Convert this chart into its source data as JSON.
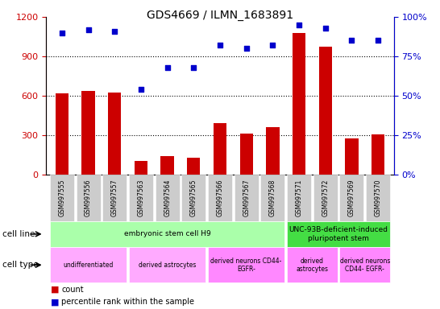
{
  "title": "GDS4669 / ILMN_1683891",
  "samples": [
    "GSM997555",
    "GSM997556",
    "GSM997557",
    "GSM997563",
    "GSM997564",
    "GSM997565",
    "GSM997566",
    "GSM997567",
    "GSM997568",
    "GSM997571",
    "GSM997572",
    "GSM997569",
    "GSM997570"
  ],
  "counts": [
    620,
    635,
    625,
    105,
    140,
    130,
    390,
    310,
    360,
    1080,
    975,
    275,
    305
  ],
  "percentiles": [
    90,
    92,
    91,
    54,
    68,
    68,
    82,
    80,
    82,
    95,
    93,
    85,
    85
  ],
  "ylim_left": [
    0,
    1200
  ],
  "ylim_right": [
    0,
    100
  ],
  "yticks_left": [
    0,
    300,
    600,
    900,
    1200
  ],
  "yticks_right": [
    0,
    25,
    50,
    75,
    100
  ],
  "bar_color": "#cc0000",
  "scatter_color": "#0000cc",
  "cell_line_spans": [
    {
      "label": "embryonic stem cell H9",
      "start": 0,
      "end": 9,
      "color": "#aaffaa"
    },
    {
      "label": "UNC-93B-deficient-induced\npluripotent stem",
      "start": 9,
      "end": 13,
      "color": "#44dd44"
    }
  ],
  "cell_type_spans": [
    {
      "label": "undifferentiated",
      "start": 0,
      "end": 3,
      "color": "#ffaaff"
    },
    {
      "label": "derived astrocytes",
      "start": 3,
      "end": 6,
      "color": "#ffaaff"
    },
    {
      "label": "derived neurons CD44-\nEGFR-",
      "start": 6,
      "end": 9,
      "color": "#ff88ff"
    },
    {
      "label": "derived\nastrocytes",
      "start": 9,
      "end": 11,
      "color": "#ff88ff"
    },
    {
      "label": "derived neurons\nCD44- EGFR-",
      "start": 11,
      "end": 13,
      "color": "#ff88ff"
    }
  ],
  "row_label_cell_line": "cell line",
  "row_label_cell_type": "cell type",
  "legend_count_color": "#cc0000",
  "legend_percentile_color": "#0000cc",
  "hline_vals": [
    300,
    600,
    900
  ]
}
